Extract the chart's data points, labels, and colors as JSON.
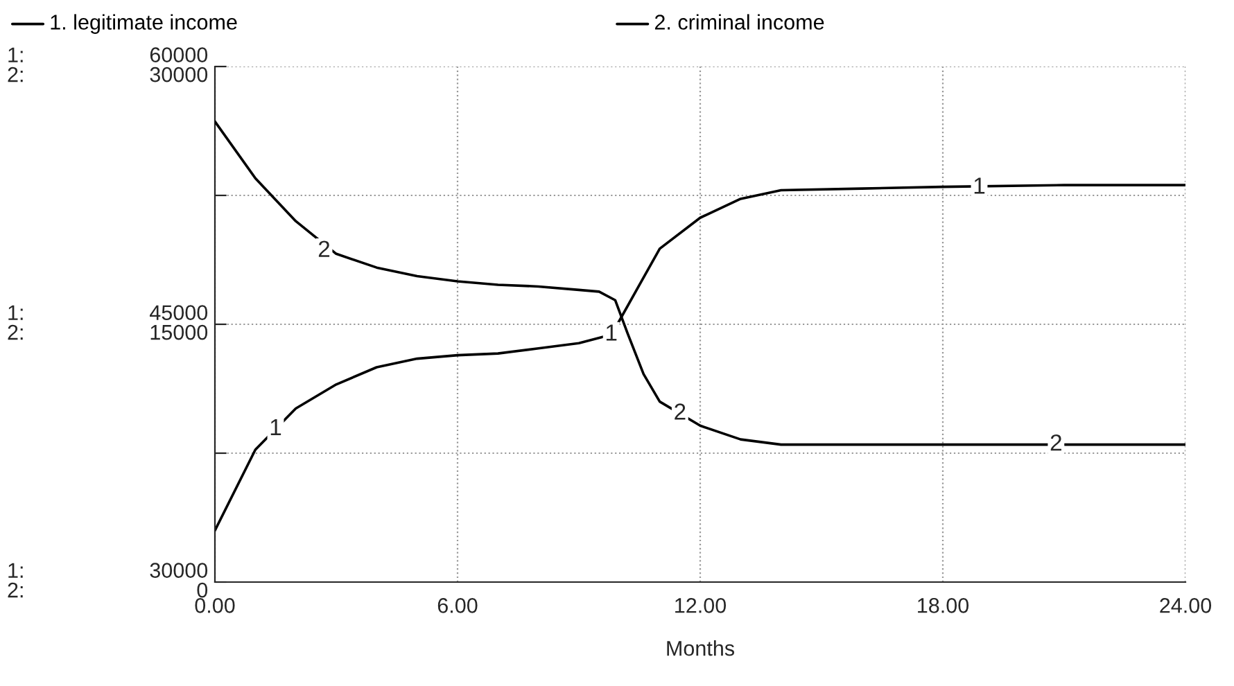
{
  "chart_data": {
    "type": "line",
    "xlabel": "Months",
    "legend": "top",
    "series": [
      {
        "name": "1. legitimate income",
        "color": "#000000",
        "x": [
          0,
          1,
          2,
          3,
          4,
          5,
          6,
          7,
          8,
          9,
          9.8,
          10,
          10.5,
          11,
          12,
          13,
          14,
          16,
          18,
          21,
          24
        ],
        "values": [
          33000,
          37700,
          40100,
          41500,
          42500,
          43000,
          43200,
          43300,
          43600,
          43900,
          44400,
          45200,
          47300,
          49400,
          51200,
          52300,
          52800,
          52900,
          53000,
          53100,
          53100
        ]
      },
      {
        "name": "2. criminal income",
        "color": "#000000",
        "axis": "y2",
        "x": [
          0,
          1,
          2,
          3,
          4,
          5,
          6,
          7,
          8,
          9,
          9.5,
          9.9,
          10.2,
          10.6,
          11,
          12,
          13,
          14,
          16,
          24
        ],
        "values": [
          26800,
          23500,
          21000,
          19100,
          18300,
          17800,
          17500,
          17300,
          17200,
          17000,
          16900,
          16400,
          14500,
          12100,
          10500,
          9100,
          8300,
          8000,
          8000,
          8000
        ]
      }
    ],
    "xlim": [
      0,
      24
    ],
    "xticks": [
      {
        "value": 0,
        "label": "0.00"
      },
      {
        "value": 6,
        "label": "6.00"
      },
      {
        "value": 12,
        "label": "12.00"
      },
      {
        "value": 18,
        "label": "18.00"
      },
      {
        "value": 24,
        "label": "24.00"
      }
    ],
    "ylim": [
      30000,
      60000
    ],
    "yticks": [
      30000,
      {
        "value": 37500,
        "label": null
      },
      45000,
      {
        "value": 52500,
        "label": null
      },
      60000
    ],
    "y2lim": [
      0,
      30000
    ],
    "y2ticks": [
      0,
      15000,
      30000
    ],
    "grid": true,
    "line_style": "solid",
    "marker": "none",
    "annotations": [
      "1:",
      "2:",
      "1:",
      "2:",
      "1:",
      "2:",
      {
        "text": "1",
        "x": 1.5,
        "y": 38900
      },
      {
        "text": "1",
        "x": 9.8,
        "y": 44400
      },
      {
        "text": "1",
        "x": 18.9,
        "y": 52950
      },
      {
        "text": "2",
        "x": 2.7,
        "y": 49270
      },
      {
        "text": "2",
        "x": 11.5,
        "y": 39800
      },
      {
        "text": "2",
        "x": 20.8,
        "y": 38000
      }
    ]
  }
}
